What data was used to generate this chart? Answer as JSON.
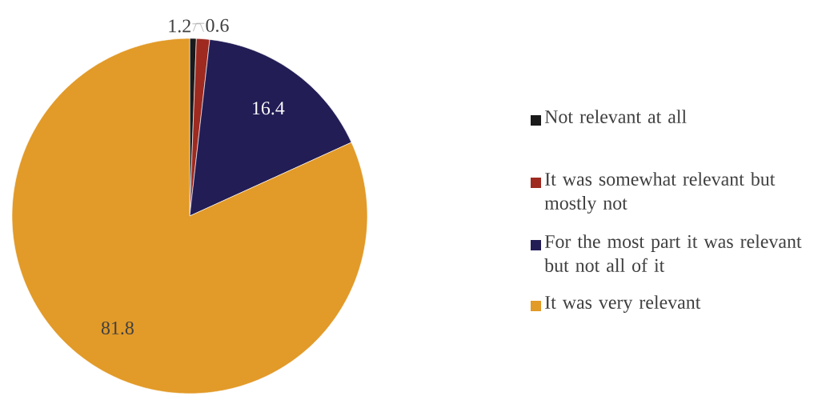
{
  "chart_data": {
    "type": "pie",
    "categories": [
      "Not relevant at all",
      "It was somewhat relevant but mostly not",
      "For the most part it was relevant but not all of it",
      "It was very relevant"
    ],
    "values": [
      0.6,
      1.2,
      16.4,
      81.8
    ],
    "colors": [
      "#1a1a1a",
      "#9e2a20",
      "#221d55",
      "#e29a28"
    ],
    "data_labels": true,
    "legend": "right"
  }
}
